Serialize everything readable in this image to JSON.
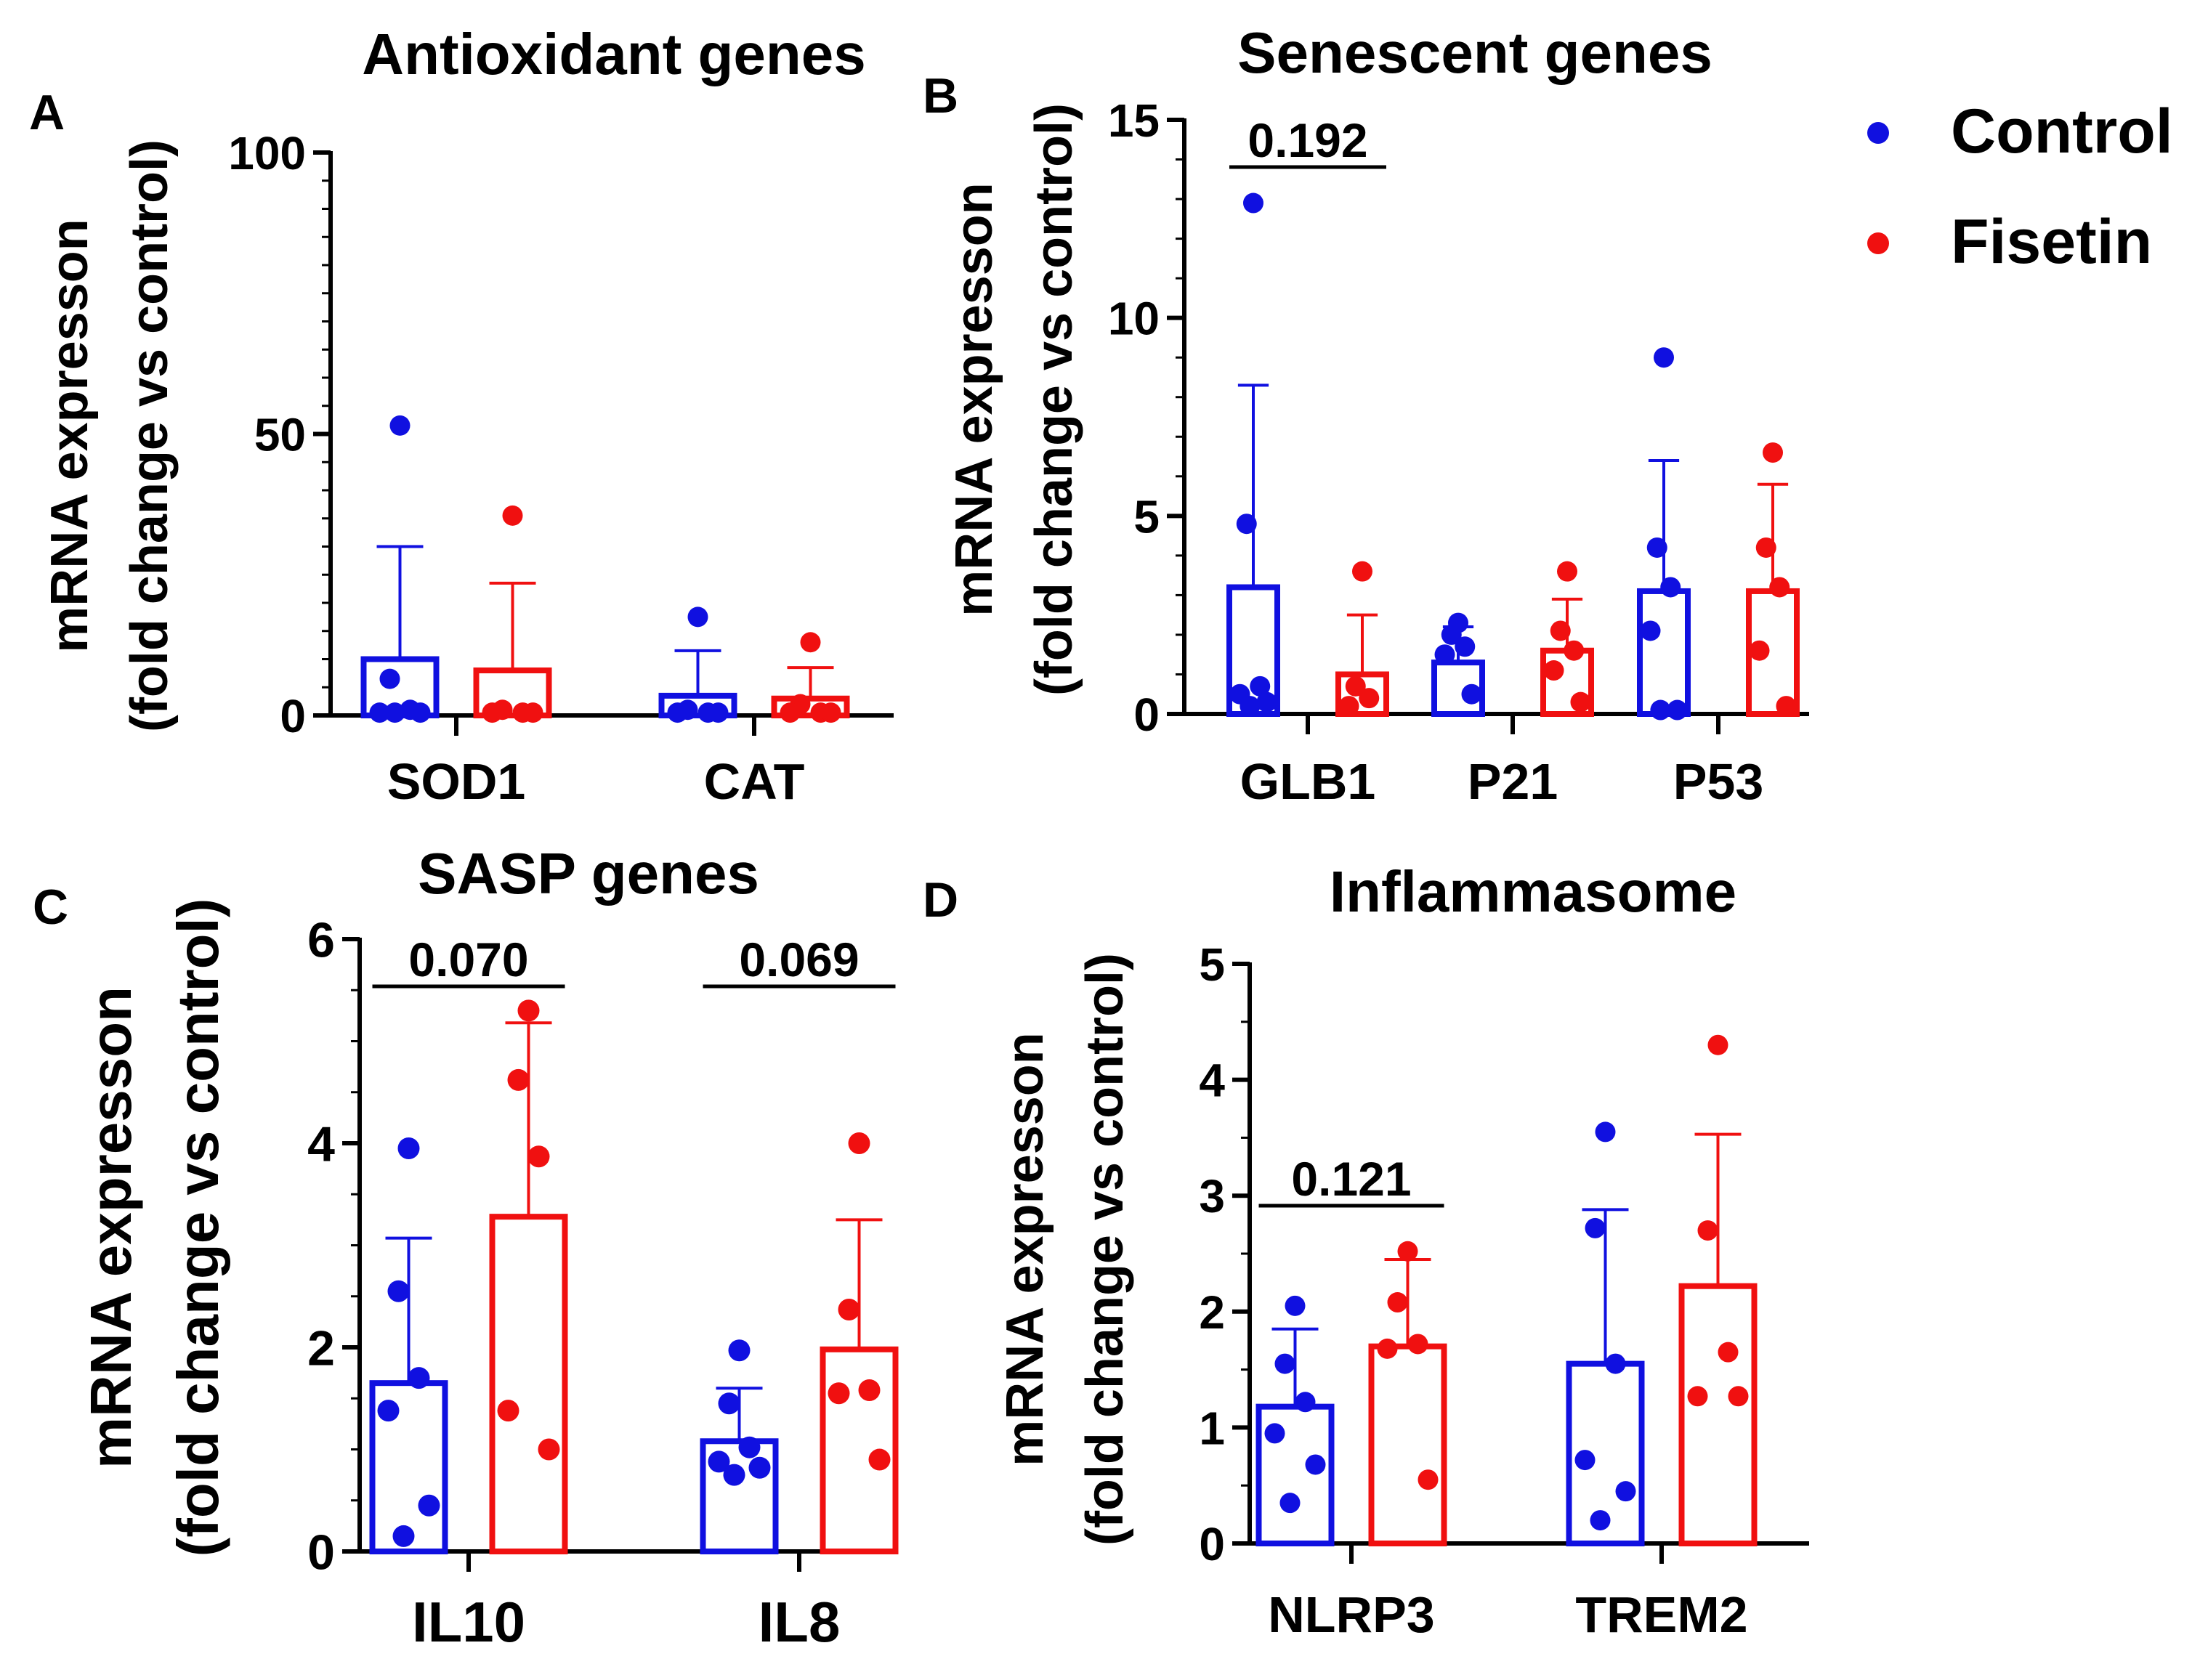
{
  "colors": {
    "control": "#1010e0",
    "fisetin": "#f01010",
    "axis": "#000000"
  },
  "legend": {
    "items": [
      {
        "label": "Control",
        "color": "#1010e0"
      },
      {
        "label": "Fisetin",
        "color": "#f01010"
      }
    ]
  },
  "chart_data": [
    {
      "panel": "A",
      "type": "bar",
      "title": "Antioxidant genes",
      "ylabel": [
        "mRNA expresson",
        "(fold change vs control)"
      ],
      "ylim": [
        0,
        100
      ],
      "yticks": [
        0,
        50,
        100
      ],
      "yminor": 5,
      "categories": [
        "SOD1",
        "CAT"
      ],
      "series": [
        {
          "name": "Control",
          "means": [
            10,
            3.5
          ],
          "sd": [
            30,
            11.5
          ],
          "points": [
            [
              51.5,
              6.5,
              1,
              0.5,
              0.5,
              0.5
            ],
            [
              17.5,
              1,
              0.5,
              0.5,
              0.5
            ]
          ]
        },
        {
          "name": "Fisetin",
          "means": [
            8,
            3
          ],
          "sd": [
            23.5,
            8.5
          ],
          "points": [
            [
              35.5,
              1,
              0.5,
              0.5,
              0.5
            ],
            [
              13,
              2,
              0.5,
              0.5,
              0.5
            ]
          ]
        }
      ],
      "annotations": []
    },
    {
      "panel": "B",
      "type": "bar",
      "title": "Senescent genes",
      "ylabel": [
        "mRNA expresson",
        "(fold change vs control)"
      ],
      "ylim": [
        0,
        15
      ],
      "yticks": [
        0,
        5,
        10,
        15
      ],
      "yminor": 1,
      "categories": [
        "GLB1",
        "P21",
        "P53"
      ],
      "series": [
        {
          "name": "Control",
          "means": [
            3.2,
            1.3,
            3.1
          ],
          "sd": [
            8.3,
            2.2,
            6.4
          ],
          "points": [
            [
              12.9,
              4.8,
              0.7,
              0.5,
              0.3,
              0.2
            ],
            [
              2.3,
              2,
              1.7,
              1.5,
              0.5
            ],
            [
              9,
              4.2,
              3.2,
              2.1,
              0.1,
              0.1
            ]
          ]
        },
        {
          "name": "Fisetin",
          "means": [
            1,
            1.6,
            3.1
          ],
          "sd": [
            2.5,
            2.9,
            5.8
          ],
          "points": [
            [
              3.6,
              0.7,
              0.4,
              0.2
            ],
            [
              3.6,
              2.1,
              1.6,
              1.1,
              0.3
            ],
            [
              6.6,
              4.2,
              3.2,
              1.6,
              0.2
            ]
          ]
        }
      ],
      "annotations": [
        {
          "text": "0.192",
          "category": 0
        }
      ]
    },
    {
      "panel": "C",
      "type": "bar",
      "title": "SASP genes",
      "ylabel": [
        "mRNA expresson",
        "(fold change vs control)"
      ],
      "ylim": [
        0,
        6
      ],
      "yticks": [
        0,
        2,
        4,
        6
      ],
      "yminor": 0.5,
      "categories": [
        "IL10",
        "IL8"
      ],
      "series": [
        {
          "name": "Control",
          "means": [
            1.65,
            1.08
          ],
          "sd": [
            3.07,
            1.6
          ],
          "points": [
            [
              3.95,
              2.55,
              1.7,
              1.38,
              0.45,
              0.15
            ],
            [
              1.97,
              1.45,
              1.02,
              0.88,
              0.82,
              0.75
            ]
          ]
        },
        {
          "name": "Fisetin",
          "means": [
            3.28,
            1.98
          ],
          "sd": [
            5.18,
            3.25
          ],
          "points": [
            [
              5.3,
              4.62,
              3.87,
              1.38,
              1
            ],
            [
              4,
              2.37,
              1.58,
              1.55,
              0.9
            ]
          ]
        }
      ],
      "annotations": [
        {
          "text": "0.070",
          "category": 0
        },
        {
          "text": "0.069",
          "category": 1
        }
      ]
    },
    {
      "panel": "D",
      "type": "bar",
      "title": "Inflammasome",
      "ylabel": [
        "mRNA expresson",
        "(fold change vs control)"
      ],
      "ylim": [
        0,
        5
      ],
      "yticks": [
        0,
        1,
        2,
        3,
        4,
        5
      ],
      "yminor": 0.5,
      "categories": [
        "NLRP3",
        "TREM2"
      ],
      "series": [
        {
          "name": "Control",
          "means": [
            1.18,
            1.55
          ],
          "sd": [
            1.85,
            2.88
          ],
          "points": [
            [
              2.05,
              1.55,
              1.22,
              0.95,
              0.68,
              0.35
            ],
            [
              3.55,
              2.72,
              1.55,
              0.72,
              0.45,
              0.2
            ]
          ]
        },
        {
          "name": "Fisetin",
          "means": [
            1.7,
            2.22
          ],
          "sd": [
            2.45,
            3.53
          ],
          "points": [
            [
              2.52,
              2.08,
              1.72,
              1.68,
              0.55
            ],
            [
              4.3,
              2.7,
              1.65,
              1.27,
              1.27
            ]
          ]
        }
      ],
      "annotations": [
        {
          "text": "0.121",
          "category": 0
        }
      ]
    }
  ]
}
